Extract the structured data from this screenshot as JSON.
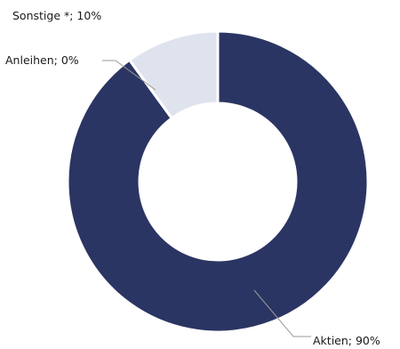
{
  "chart_data": {
    "type": "pie",
    "variant": "donut",
    "title": "",
    "slices": [
      {
        "name": "Aktien",
        "value": 90,
        "label": "Aktien; 90%",
        "color": "#2b3563"
      },
      {
        "name": "Anleihen",
        "value": 0,
        "label": "Anleihen; 0%",
        "color": "#2b3563"
      },
      {
        "name": "Sonstige *",
        "value": 10,
        "label": "Sonstige *; 10%",
        "color": "#dfe3ee"
      }
    ],
    "legend": "none",
    "start_angle_deg": 0,
    "direction": "clockwise"
  }
}
